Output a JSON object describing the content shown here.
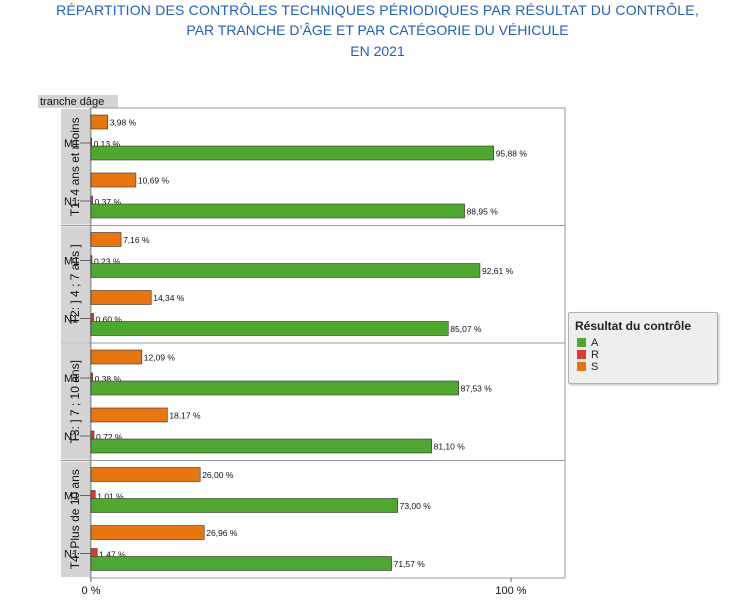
{
  "title": {
    "line1": "RÉPARTITION DES CONTRÔLES TECHNIQUES PÉRIODIQUES PAR RÉSULTAT DU CONTRÔLE,",
    "line2": "PAR TRANCHE D’ÂGE ET PAR CATÉGORIE DU VÉHICULE",
    "line3": "EN 2021"
  },
  "chart_data": {
    "type": "bar",
    "orientation": "horizontal",
    "panel_header": "tranche dâge",
    "xlim": [
      0,
      100
    ],
    "x_ticks": [
      "0 %",
      "100 %"
    ],
    "legend": {
      "title": "Résultat du contrôle",
      "placement": "right",
      "items": [
        {
          "name": "A",
          "color": "#4ea72e"
        },
        {
          "name": "R",
          "color": "#e03a2f"
        },
        {
          "name": "S",
          "color": "#e8750f"
        }
      ]
    },
    "panels": [
      {
        "label": "T1: 4 ans et moins",
        "groups": [
          {
            "category": "M1",
            "S": 3.98,
            "R": 0.13,
            "A": 95.88,
            "labels": {
              "S": "3,98 %",
              "R": "0,13 %",
              "A": "95,88 %"
            }
          },
          {
            "category": "N1",
            "S": 10.69,
            "R": 0.37,
            "A": 88.95,
            "labels": {
              "S": "10,69 %",
              "R": "0,37 %",
              "A": "88,95 %"
            }
          }
        ]
      },
      {
        "label": "T2: ] 4 ; 7 ans ]",
        "groups": [
          {
            "category": "M1",
            "S": 7.16,
            "R": 0.23,
            "A": 92.61,
            "labels": {
              "S": "7,16 %",
              "R": "0,23 %",
              "A": "92,61 %"
            }
          },
          {
            "category": "N1",
            "S": 14.34,
            "R": 0.6,
            "A": 85.07,
            "labels": {
              "S": "14,34 %",
              "R": "0,60 %",
              "A": "85,07 %"
            }
          }
        ]
      },
      {
        "label": "T3: ] 7 ; 10 ans]",
        "groups": [
          {
            "category": "M1",
            "S": 12.09,
            "R": 0.38,
            "A": 87.53,
            "labels": {
              "S": "12,09 %",
              "R": "0,38 %",
              "A": "87,53 %"
            }
          },
          {
            "category": "N1",
            "S": 18.17,
            "R": 0.72,
            "A": 81.1,
            "labels": {
              "S": "18,17 %",
              "R": "0,72 %",
              "A": "81,10 %"
            }
          }
        ]
      },
      {
        "label": "T4: Plus de 10 ans",
        "groups": [
          {
            "category": "M1",
            "S": 26.0,
            "R": 1.01,
            "A": 73.0,
            "labels": {
              "S": "26,00 %",
              "R": "1,01 %",
              "A": "73,00 %"
            }
          },
          {
            "category": "N1",
            "S": 26.96,
            "R": 1.47,
            "A": 71.57,
            "labels": {
              "S": "26,96 %",
              "R": "1,47 %",
              "A": "71,57 %"
            }
          }
        ]
      }
    ]
  }
}
